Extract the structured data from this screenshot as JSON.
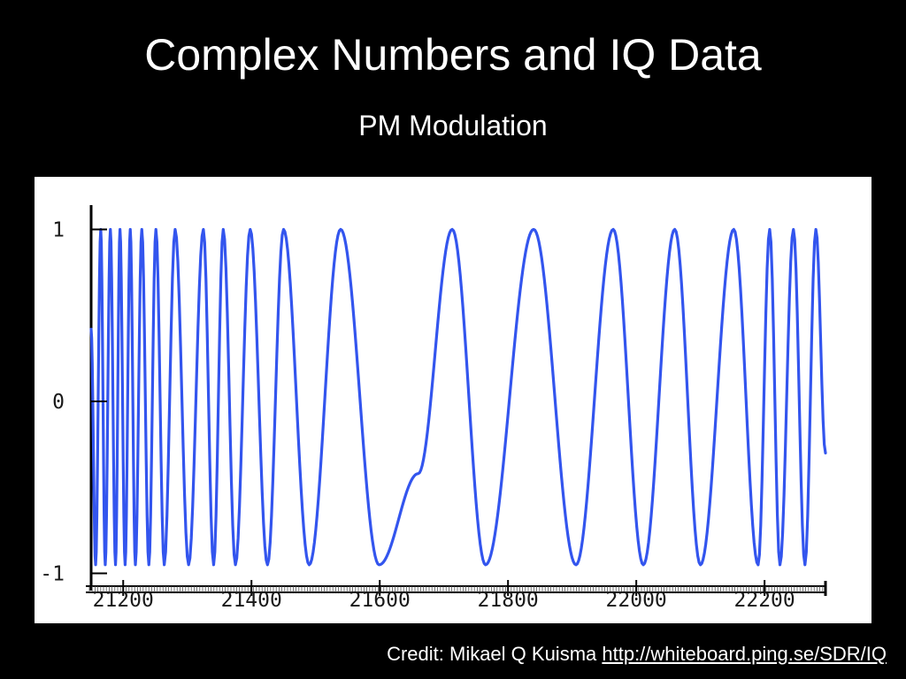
{
  "slide": {
    "title": "Complex Numbers and IQ  Data",
    "subtitle": "PM Modulation",
    "credit_text": "Credit: Mikael Q Kuisma ",
    "credit_link": "http://whiteboard.ping.se/SDR/IQ"
  },
  "colors": {
    "background": "#000000",
    "plot_background": "#ffffff",
    "signal": "#3355ee",
    "axis": "#000000"
  },
  "chart_data": {
    "type": "line",
    "title": "",
    "xlabel": "",
    "ylabel": "",
    "xlim": [
      21150,
      22295
    ],
    "ylim": [
      -1.1,
      1.1
    ],
    "x_ticks": [
      21200,
      21400,
      21600,
      21800,
      22000,
      22200
    ],
    "x_tick_labels": [
      "21200",
      "21400",
      "21600",
      "21800",
      "22000",
      "22200"
    ],
    "y_ticks": [
      -1,
      0,
      1
    ],
    "y_tick_labels": [
      "-1",
      "0",
      "1"
    ],
    "grid": false,
    "legend": "none",
    "series": [
      {
        "x": [
          21150,
          21157,
          21165,
          21172,
          21180,
          21188,
          21195,
          21203,
          21211,
          21219,
          21229,
          21240,
          21251,
          21264,
          21281,
          21302,
          21325,
          21341,
          21356,
          21375,
          21398,
          21425,
          21450,
          21490,
          21539,
          21599,
          21660,
          21713,
          21765,
          21840,
          21906,
          21964,
          22011,
          22060,
          22100,
          22152,
          22190,
          22208,
          22224,
          22245,
          22263,
          22280,
          22295
        ],
        "y": [
          0.42,
          -0.95,
          1.0,
          -0.95,
          1.0,
          -0.95,
          1.0,
          -0.95,
          1.0,
          -0.95,
          1.0,
          -0.95,
          1.0,
          -0.95,
          1.0,
          -0.95,
          1.0,
          -0.95,
          1.0,
          -0.95,
          1.0,
          -0.95,
          1.0,
          -0.95,
          1.0,
          -0.95,
          -0.42,
          1.0,
          -0.95,
          1.0,
          -0.95,
          1.0,
          -0.95,
          1.0,
          -0.95,
          1.0,
          -0.95,
          1.0,
          -0.95,
          1.0,
          -0.95,
          1.0,
          -0.3
        ]
      }
    ]
  }
}
